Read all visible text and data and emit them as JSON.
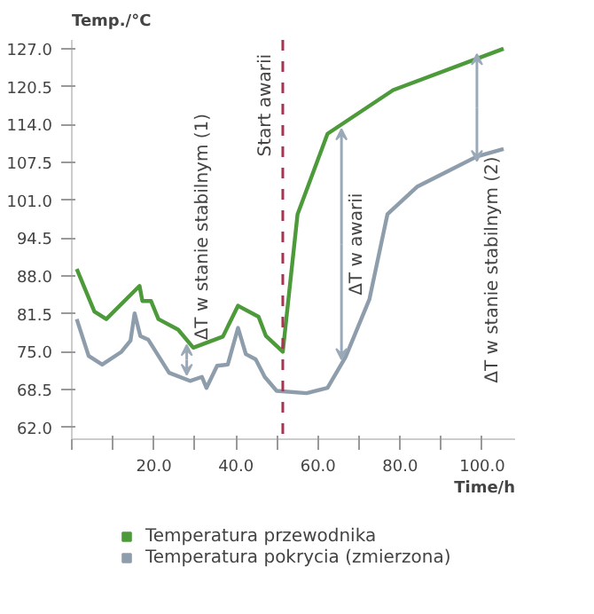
{
  "chart_data": {
    "type": "line",
    "xlabel": "Time/h",
    "ylabel": "Temp./°C",
    "xlim": [
      0,
      108
    ],
    "ylim": [
      60,
      128.5
    ],
    "xticks": [
      {
        "value": 0,
        "label": null
      },
      {
        "value": 10,
        "label": null
      },
      {
        "value": 20,
        "label": "20.0"
      },
      {
        "value": 30,
        "label": null
      },
      {
        "value": 40,
        "label": "40.0"
      },
      {
        "value": 50,
        "label": null
      },
      {
        "value": 60,
        "label": "60.0"
      },
      {
        "value": 70,
        "label": null
      },
      {
        "value": 80,
        "label": "80.0"
      },
      {
        "value": 90,
        "label": null
      },
      {
        "value": 100,
        "label": "100.0"
      }
    ],
    "yticks": [
      {
        "value": 62,
        "label": "62.0"
      },
      {
        "value": 68.5,
        "label": "68.5"
      },
      {
        "value": 75,
        "label": "75.0"
      },
      {
        "value": 81.5,
        "label": "81.5"
      },
      {
        "value": 88,
        "label": "88.0"
      },
      {
        "value": 94.5,
        "label": "94.5"
      },
      {
        "value": 101,
        "label": "101.0"
      },
      {
        "value": 107.5,
        "label": "107.5"
      },
      {
        "value": 114,
        "label": "114.0"
      },
      {
        "value": 120.5,
        "label": "120.5"
      },
      {
        "value": 127,
        "label": "127.0"
      }
    ],
    "series": [
      {
        "name": "Temperatura przewodnika",
        "color": "#4c9a3a",
        "x": [
          1.2,
          5.5,
          8.4,
          16.5,
          17.2,
          19.3,
          21.1,
          25.9,
          29.6,
          36.8,
          40.5,
          45.5,
          47.3,
          51.4,
          55.0,
          62.3,
          78.3,
          105.2
        ],
        "values": [
          89.2,
          81.9,
          80.6,
          86.3,
          83.7,
          83.7,
          80.6,
          78.8,
          75.7,
          77.6,
          82.9,
          81.0,
          77.7,
          75.0,
          98.6,
          112.4,
          119.9,
          127.0
        ]
      },
      {
        "name": "Temperatura pokrycia (zmierzona)",
        "color": "#8e9dab",
        "x": [
          1.2,
          4.1,
          7.4,
          12.1,
          14.3,
          15.3,
          16.7,
          18.6,
          23.7,
          28.8,
          31.7,
          32.8,
          35.4,
          38.0,
          40.5,
          42.4,
          44.8,
          47.0,
          49.9,
          57.2,
          62.3,
          66.7,
          72.5,
          76.9,
          84.1,
          98.7,
          105.2
        ],
        "values": [
          80.6,
          74.3,
          72.8,
          75.0,
          76.9,
          81.6,
          77.7,
          77.1,
          71.4,
          70.0,
          70.7,
          68.8,
          72.6,
          72.8,
          79.1,
          74.6,
          73.7,
          70.7,
          68.3,
          67.9,
          68.8,
          74.1,
          84.0,
          98.6,
          103.3,
          108.5,
          109.8
        ]
      }
    ],
    "ref_lines": [
      {
        "axis": "x",
        "value": 51.4,
        "label": "Start awarii",
        "color": "#a83250",
        "line_style": "dashed"
      }
    ],
    "annotations": [
      {
        "text": "ΔT w stanie stabilnym (1)",
        "x": 28,
        "y": 77.0
      },
      {
        "text": "ΔT w awarii",
        "x": 65.7,
        "y": 114.0
      },
      {
        "text": "ΔT w stanie stabilnym (2)",
        "x": 98.7,
        "y": 108.5
      }
    ],
    "legend": "bottom",
    "grid": false,
    "marker": "none",
    "line_style": "solid"
  }
}
